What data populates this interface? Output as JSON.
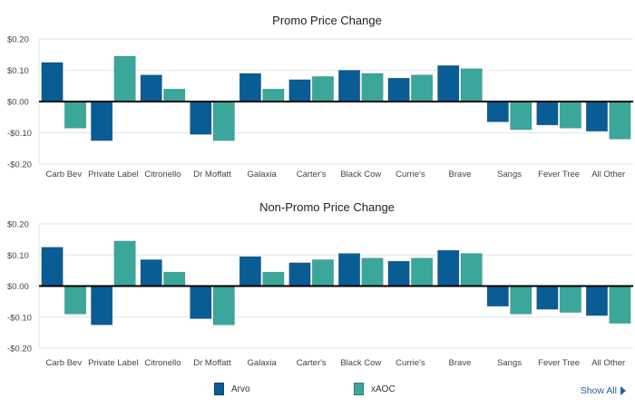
{
  "colors": {
    "arvo": "#0a5c94",
    "xaoc": "#3aa79a",
    "zero_line": "#000000",
    "grid": "#e6e6e6"
  },
  "legend": {
    "series1": "Arvo",
    "series2": "xAOC"
  },
  "show_all": {
    "label": "Show All"
  },
  "chart_data": [
    {
      "type": "bar",
      "title": "Promo Price Change",
      "categories": [
        "Carb Bev",
        "Private Label",
        "Citronello",
        "Dr Moffatt",
        "Galaxia",
        "Carter's",
        "Black Cow",
        "Currie's",
        "Brave",
        "Sangs",
        "Fever Tree",
        "All Other"
      ],
      "series": [
        {
          "name": "Arvo",
          "values": [
            0.125,
            -0.125,
            0.085,
            -0.105,
            0.09,
            0.07,
            0.1,
            0.075,
            0.115,
            -0.065,
            -0.075,
            -0.095
          ]
        },
        {
          "name": "xAOC",
          "values": [
            -0.085,
            0.145,
            0.04,
            -0.125,
            0.04,
            0.08,
            0.09,
            0.085,
            0.105,
            -0.09,
            -0.085,
            -0.12
          ]
        }
      ],
      "ylim": [
        -0.2,
        0.2
      ],
      "yticks": [
        "$0.20",
        "$0.10",
        "$0.00",
        "-$0.10",
        "-$0.20"
      ],
      "ytick_values": [
        0.2,
        0.1,
        0,
        -0.1,
        -0.2
      ],
      "grid": true
    },
    {
      "type": "bar",
      "title": "Non-Promo Price Change",
      "categories": [
        "Carb Bev",
        "Private Label",
        "Citronello",
        "Dr Moffatt",
        "Galaxia",
        "Carter's",
        "Black Cow",
        "Currie's",
        "Brave",
        "Sangs",
        "Fever Tree",
        "All Other"
      ],
      "series": [
        {
          "name": "Arvo",
          "values": [
            0.125,
            -0.125,
            0.085,
            -0.105,
            0.095,
            0.075,
            0.105,
            0.08,
            0.115,
            -0.065,
            -0.075,
            -0.095
          ]
        },
        {
          "name": "xAOC",
          "values": [
            -0.09,
            0.145,
            0.045,
            -0.125,
            0.045,
            0.085,
            0.09,
            0.09,
            0.105,
            -0.09,
            -0.085,
            -0.12
          ]
        }
      ],
      "ylim": [
        -0.2,
        0.2
      ],
      "yticks": [
        "$0.20",
        "$0.10",
        "$0.00",
        "-$0.10",
        "-$0.20"
      ],
      "ytick_values": [
        0.2,
        0.1,
        0,
        -0.1,
        -0.2
      ],
      "grid": true
    }
  ]
}
